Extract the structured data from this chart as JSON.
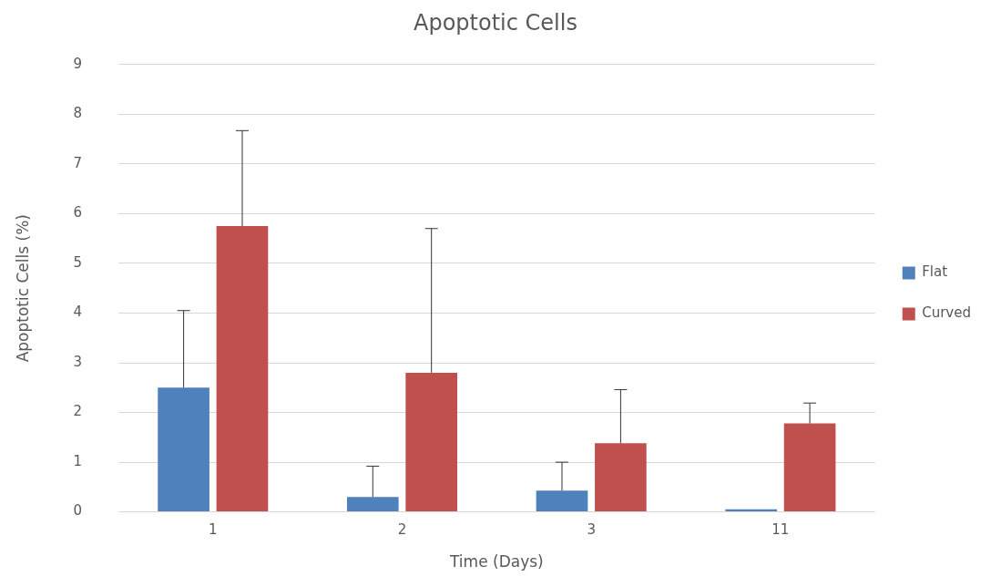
{
  "chart_data": {
    "type": "bar",
    "title": "Apoptotic Cells",
    "xlabel": "Time (Days)",
    "ylabel": "Apoptotic Cells (%)",
    "categories": [
      "1",
      "2",
      "3",
      "11"
    ],
    "series": [
      {
        "name": "Flat",
        "color": "#4f81bd",
        "values": [
          2.5,
          0.3,
          0.43,
          0.05
        ],
        "errors": [
          [
            2.5,
            4.05
          ],
          [
            0.3,
            0.92
          ],
          [
            0.43,
            1.0
          ],
          null
        ]
      },
      {
        "name": "Curved",
        "color": "#c0504d",
        "values": [
          5.75,
          2.8,
          1.38,
          1.78
        ],
        "errors": [
          [
            5.75,
            7.67
          ],
          [
            2.8,
            5.7
          ],
          [
            1.38,
            2.46
          ],
          [
            1.78,
            2.19
          ]
        ]
      }
    ],
    "ylim": [
      0,
      9
    ],
    "yticks": [
      0,
      1,
      2,
      3,
      4,
      5,
      6,
      7,
      8,
      9
    ],
    "grid": "y",
    "legend": "right"
  }
}
